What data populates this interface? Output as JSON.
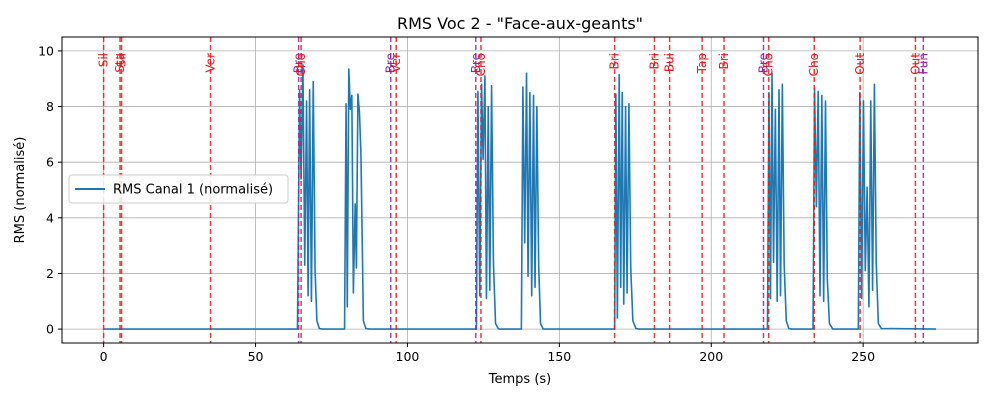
{
  "chart_data": {
    "type": "line",
    "title": "RMS Voc 2 - \"Face-aux-geants\"",
    "xlabel": "Temps (s)",
    "ylabel": "RMS (normalisé)",
    "xlim": [
      -13.7,
      287.8
    ],
    "ylim": [
      -0.5,
      10.5
    ],
    "xticks": [
      0,
      50,
      100,
      150,
      200,
      250
    ],
    "yticks": [
      0,
      2,
      4,
      6,
      8,
      10
    ],
    "grid": true,
    "legend_position": "center-left",
    "colors": {
      "series": "#1f77b4",
      "marker_red": "#e41a1c",
      "marker_purple": "#8e24aa"
    },
    "series": [
      {
        "name": "RMS Canal 1 (normalisé)",
        "x": [
          0,
          63.8,
          64.5,
          65,
          65.6,
          66.2,
          66.8,
          67.3,
          67.8,
          68.4,
          69,
          69.6,
          70.2,
          71,
          72,
          79.3,
          79.8,
          80.2,
          80.7,
          81.2,
          81.7,
          82.2,
          82.8,
          83.2,
          83.7,
          84.2,
          84.7,
          85.5,
          86.3,
          87.5,
          122.7,
          123.2,
          123.8,
          124.4,
          124.9,
          125.5,
          126,
          126.6,
          127.1,
          127.7,
          128.3,
          129,
          130,
          137.5,
          138,
          138.6,
          139.2,
          139.7,
          140.3,
          140.9,
          141.5,
          142,
          142.6,
          143.2,
          143.8,
          144.7,
          168.2,
          168.6,
          169.1,
          169.7,
          170.2,
          170.7,
          171.2,
          171.8,
          172.3,
          172.9,
          173.5,
          174.2,
          175.2,
          176.2,
          218.5,
          219,
          219.5,
          220,
          220.5,
          221.1,
          221.7,
          222.3,
          222.8,
          223.4,
          224,
          224.7,
          225.5,
          226.5,
          233.5,
          234,
          234.6,
          235.2,
          235.8,
          236.4,
          237,
          237.6,
          238.2,
          238.9,
          240,
          248.4,
          248.9,
          249.5,
          250.1,
          250.7,
          251.3,
          251.9,
          252.5,
          253.1,
          253.7,
          254.3,
          255,
          256,
          274
        ],
        "y": [
          0,
          0,
          8.6,
          5.4,
          9.5,
          2.3,
          8.2,
          1.2,
          8.6,
          1.0,
          8.9,
          2.1,
          0.3,
          0.02,
          0,
          0,
          8.1,
          0.8,
          9.35,
          7.9,
          8.4,
          1.3,
          4.5,
          2.2,
          8.45,
          7.8,
          6.3,
          0.3,
          0.02,
          0,
          0,
          8.55,
          1.2,
          8.8,
          6.1,
          9.1,
          1.1,
          8.0,
          1.4,
          8.75,
          2.4,
          0.2,
          0,
          0,
          8.7,
          3.1,
          9.2,
          1.9,
          8.5,
          1.2,
          8.4,
          1.5,
          8.0,
          2.3,
          0.2,
          0,
          0,
          8.45,
          0.4,
          9.15,
          1.5,
          8.5,
          0.9,
          8.0,
          1.3,
          8.1,
          2.2,
          0.3,
          0.02,
          0,
          0,
          8.5,
          1.1,
          9.2,
          2.4,
          7.9,
          1.0,
          8.6,
          1.2,
          8.8,
          2.3,
          0.3,
          0.02,
          0,
          0,
          8.65,
          4.4,
          8.55,
          1.2,
          8.4,
          1.0,
          8.2,
          1.8,
          0.2,
          0,
          0,
          8.5,
          1.1,
          8.2,
          2.1,
          5.1,
          0.8,
          8.2,
          1.4,
          8.8,
          2.4,
          0.2,
          0.02,
          0
        ]
      }
    ],
    "events": [
      {
        "t": 0.0,
        "label": "Sil",
        "color": "red"
      },
      {
        "t": 5.4,
        "label": "Sta",
        "color": "red"
      },
      {
        "t": 5.9,
        "label": "Sil",
        "color": "red"
      },
      {
        "t": 35.2,
        "label": "Ver",
        "color": "red"
      },
      {
        "t": 64.2,
        "label": "Bre",
        "color": "purple"
      },
      {
        "t": 65.0,
        "label": "Cho",
        "color": "red"
      },
      {
        "t": 94.5,
        "label": "Bre",
        "color": "purple"
      },
      {
        "t": 96.3,
        "label": "Ver",
        "color": "red"
      },
      {
        "t": 122.5,
        "label": "Bre",
        "color": "purple"
      },
      {
        "t": 124.2,
        "label": "Cho",
        "color": "red"
      },
      {
        "t": 168.2,
        "label": "Bri",
        "color": "red"
      },
      {
        "t": 181.3,
        "label": "Bri",
        "color": "red"
      },
      {
        "t": 186.3,
        "label": "Bui",
        "color": "red"
      },
      {
        "t": 197.0,
        "label": "Tap",
        "color": "red"
      },
      {
        "t": 204.2,
        "label": "Bri",
        "color": "red"
      },
      {
        "t": 217.2,
        "label": "Bre",
        "color": "purple"
      },
      {
        "t": 218.9,
        "label": "Cho",
        "color": "red"
      },
      {
        "t": 233.9,
        "label": "Cho",
        "color": "red"
      },
      {
        "t": 249.0,
        "label": "Out",
        "color": "red"
      },
      {
        "t": 267.2,
        "label": "Out",
        "color": "red"
      },
      {
        "t": 269.8,
        "label": "Fun",
        "color": "purple"
      }
    ]
  }
}
